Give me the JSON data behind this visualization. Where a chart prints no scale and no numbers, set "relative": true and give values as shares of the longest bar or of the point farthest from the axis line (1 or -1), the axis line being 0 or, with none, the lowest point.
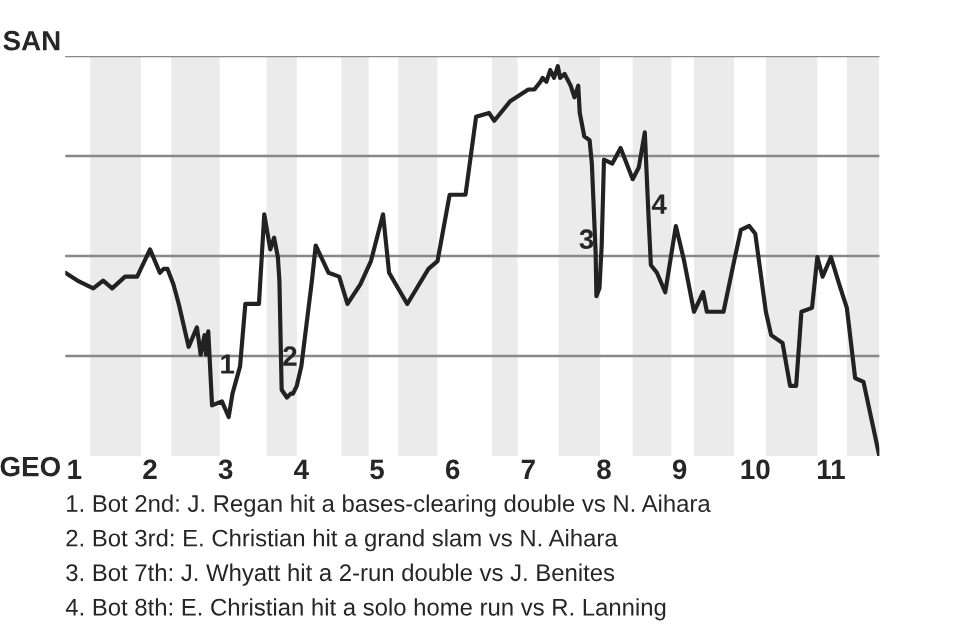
{
  "chart_data": {
    "type": "line",
    "relative": true,
    "x": [
      0.88,
      1.04,
      1.25,
      1.38,
      1.5,
      1.67,
      1.83,
      2.0,
      2.13,
      2.18,
      2.23,
      2.31,
      2.38,
      2.51,
      2.62,
      2.67,
      2.72,
      2.74,
      2.77,
      2.82,
      2.95,
      3.04,
      3.09,
      3.19,
      3.26,
      3.44,
      3.51,
      3.59,
      3.64,
      3.69,
      3.71,
      3.74,
      3.81,
      3.86,
      3.89,
      3.94,
      4.0,
      4.14,
      4.19,
      4.36,
      4.5,
      4.61,
      4.78,
      4.92,
      5.08,
      5.16,
      5.4,
      5.68,
      5.8,
      5.96,
      6.07,
      6.17,
      6.31,
      6.48,
      6.55,
      6.76,
      7.0,
      7.08,
      7.16,
      7.19,
      7.24,
      7.29,
      7.34,
      7.39,
      7.42,
      7.48,
      7.56,
      7.61,
      7.66,
      7.68,
      7.74,
      7.81,
      7.84,
      7.89,
      7.9,
      7.94,
      7.97,
      8.0,
      8.11,
      8.22,
      8.38,
      8.46,
      8.54,
      8.59,
      8.62,
      8.7,
      8.81,
      8.95,
      9.06,
      9.19,
      9.31,
      9.36,
      9.58,
      9.72,
      9.81,
      9.92,
      10.0,
      10.14,
      10.21,
      10.36,
      10.46,
      10.54,
      10.61,
      10.75,
      10.82,
      10.89,
      11.0,
      11.11,
      11.21,
      11.32,
      11.43,
      11.64
    ],
    "series": [
      {
        "color": "#222222",
        "values": [
          0.47,
          0.45,
          0.43,
          0.45,
          0.43,
          0.46,
          0.46,
          0.53,
          0.47,
          0.48,
          0.48,
          0.44,
          0.39,
          0.28,
          0.33,
          0.26,
          0.31,
          0.26,
          0.32,
          0.13,
          0.14,
          0.1,
          0.16,
          0.23,
          0.39,
          0.39,
          0.62,
          0.53,
          0.56,
          0.51,
          0.45,
          0.17,
          0.15,
          0.16,
          0.16,
          0.18,
          0.23,
          0.45,
          0.54,
          0.47,
          0.46,
          0.39,
          0.44,
          0.5,
          0.62,
          0.47,
          0.39,
          0.48,
          0.5,
          0.67,
          0.67,
          0.67,
          0.87,
          0.88,
          0.86,
          0.91,
          0.94,
          0.94,
          0.96,
          0.97,
          0.96,
          0.99,
          0.97,
          1,
          0.97,
          0.98,
          0.95,
          0.92,
          0.95,
          0.88,
          0.82,
          0.81,
          0.75,
          0.52,
          0.41,
          0.43,
          0.54,
          0.76,
          0.75,
          0.79,
          0.71,
          0.74,
          0.83,
          0.61,
          0.49,
          0.47,
          0.42,
          0.59,
          0.5,
          0.37,
          0.42,
          0.37,
          0.37,
          0.5,
          0.58,
          0.59,
          0.57,
          0.37,
          0.31,
          0.29,
          0.18,
          0.18,
          0.37,
          0.38,
          0.51,
          0.46,
          0.51,
          0.44,
          0.38,
          0.2,
          0.19,
          0
        ]
      }
    ],
    "xlim": [
      0.88,
      11.64
    ],
    "xticks": [
      1,
      2,
      3,
      4,
      5,
      6,
      7,
      8,
      9,
      10,
      11
    ],
    "grid": "y",
    "bands": [
      {
        "axis": "x",
        "from": 1.21,
        "to": 1.88,
        "color": "#ebebeb"
      },
      {
        "axis": "x",
        "from": 2.28,
        "to": 2.92,
        "color": "#ebebeb"
      },
      {
        "axis": "x",
        "from": 3.54,
        "to": 3.94,
        "color": "#ebebeb"
      },
      {
        "axis": "x",
        "from": 4.53,
        "to": 4.89,
        "color": "#ebebeb"
      },
      {
        "axis": "x",
        "from": 5.28,
        "to": 5.8,
        "color": "#ebebeb"
      },
      {
        "axis": "x",
        "from": 6.52,
        "to": 6.86,
        "color": "#ebebeb"
      },
      {
        "axis": "x",
        "from": 7.4,
        "to": 7.95,
        "color": "#ebebeb"
      },
      {
        "axis": "x",
        "from": 8.38,
        "to": 8.89,
        "color": "#ebebeb"
      },
      {
        "axis": "x",
        "from": 9.19,
        "to": 9.72,
        "color": "#ebebeb"
      },
      {
        "axis": "x",
        "from": 10.14,
        "to": 10.82,
        "color": "#ebebeb"
      },
      {
        "axis": "x",
        "from": 11.21,
        "to": 11.64,
        "color": "#ebebeb"
      }
    ],
    "annotations": [
      {
        "text": "1",
        "x": 3.02,
        "y": 0.23
      },
      {
        "text": "2",
        "x": 3.85,
        "y": 0.25
      },
      {
        "text": "3",
        "x": 7.77,
        "y": 0.55
      },
      {
        "text": "4",
        "x": 8.73,
        "y": 0.64
      },
      "SAN",
      "GEO",
      "1. Bot 2nd: J. Regan hit a bases-clearing double vs N. Aihara",
      "2. Bot 3rd: E. Christian hit a grand slam vs N. Aihara",
      "3. Bot 7th: J. Whyatt hit a 2-run double vs J. Benites",
      "4. Bot 8th: E. Christian hit a solo home run vs R. Lanning"
    ]
  }
}
